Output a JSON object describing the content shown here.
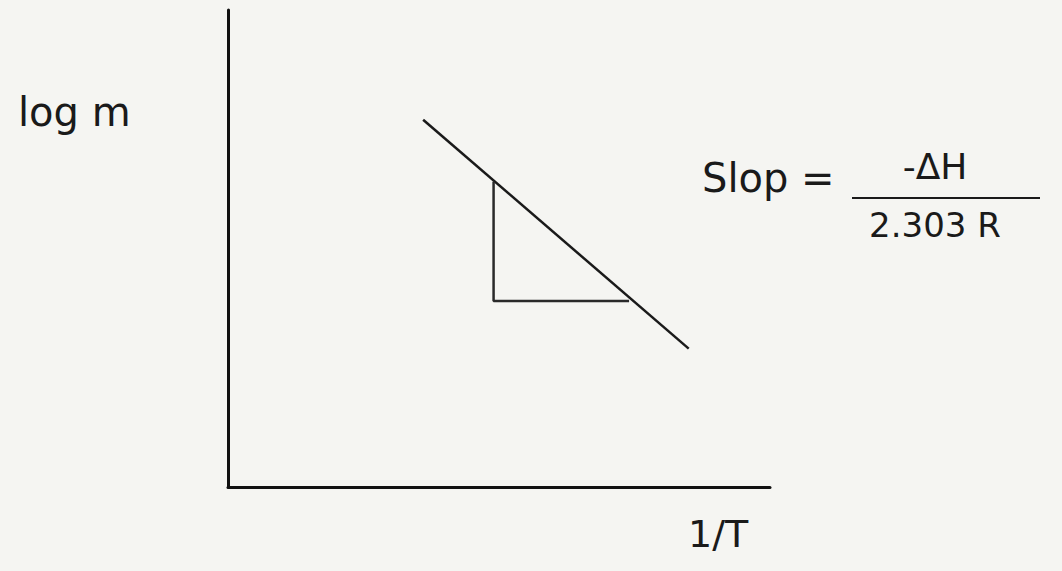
{
  "chart_data": {
    "type": "line",
    "x_label": "1/T",
    "y_label": "log m",
    "xlim": [
      0,
      10
    ],
    "ylim": [
      0,
      10
    ],
    "tick_labels": false,
    "grid": false,
    "marker": "none",
    "series": [
      {
        "type": "line",
        "color": "#1a1a1a",
        "line_style": "solid",
        "x": [
          3.6,
          8.5
        ],
        "values": [
          7.7,
          2.9
        ]
      },
      {
        "type": "line",
        "color": "#2a2a2a",
        "line_style": "solid",
        "x": [
          4.9,
          4.9,
          7.4
        ],
        "values": [
          6.4,
          3.9,
          3.9
        ]
      }
    ],
    "annotation": {
      "lhs": "Slop =",
      "numerator": "-ΔH",
      "denominator": "2.303 R"
    }
  }
}
